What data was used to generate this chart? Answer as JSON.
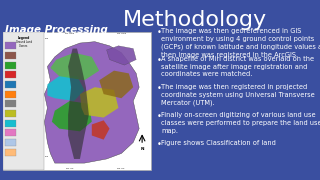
{
  "background_color": "#3a4fa0",
  "title": "Methodology",
  "title_color": "#ffffff",
  "title_fontsize": 16,
  "section_label": "Image Processing",
  "section_label_color": "#ffffff",
  "section_label_fontsize": 7.5,
  "bullet_points": [
    "The image was then georeferenced in GIS\nenvironment by using 4 ground control points\n(GCPs) of known latitude and longitude values and\nthen image was registered in the ArcGIS.",
    "A shapefile of Miri district was overlaid on the\nsatellite image after image registration and\ncoordinates were matched.",
    "The image was then registered in projected\ncoordinate system using Universal Transverse\nMercator (UTM).",
    "Finally on-screen digitizing of various land use\nclasses were performed to prepare the land use\nmap.",
    "Figure shows Classification of land"
  ],
  "bullet_color": "#ffffff",
  "bullet_fontsize": 4.8,
  "map_legend_colors": [
    "#9467bd",
    "#8c564b",
    "#2ca02c",
    "#d62728",
    "#1f77b4",
    "#ff7f0e",
    "#7f7f7f",
    "#bcbd22",
    "#17becf",
    "#e377c2",
    "#aec7e8",
    "#ffbb78"
  ],
  "map_region_colors": {
    "purple_main": "#9467bd",
    "green1": "#2ca02c",
    "teal": "#17becf",
    "green2": "#bcbd22",
    "purple2": "#7b4fa6",
    "dark_green": "#1a7a3c",
    "red": "#c0392b",
    "dark_strip": "#2c2c2c",
    "brown": "#8b6914",
    "light_green": "#56b84e"
  }
}
